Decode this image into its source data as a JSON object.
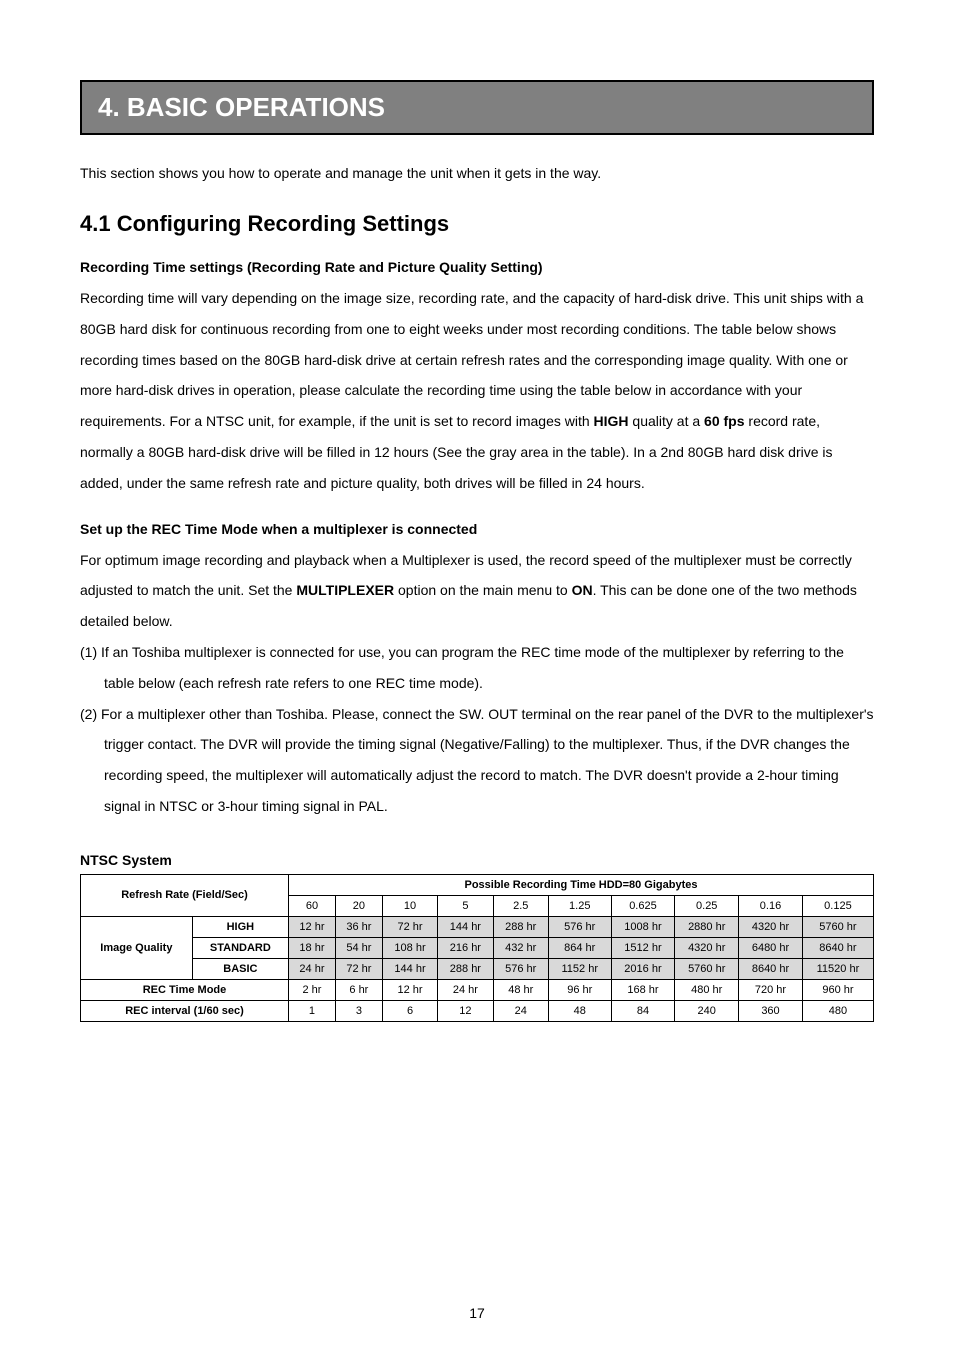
{
  "banner": {
    "title": "4. BASIC OPERATIONS"
  },
  "intro": "This section shows you how to operate and manage the unit when it gets in the way.",
  "h2": "4.1 Configuring Recording Settings",
  "section1": {
    "heading": "Recording Time settings (Recording Rate and Picture Quality Setting)",
    "text_a": "Recording time will vary depending on the image size, recording rate, and the capacity of hard-disk drive. This unit ships with a 80GB hard disk for continuous recording from one to eight weeks under most recording conditions. The table below shows recording times based on the 80GB hard-disk drive at certain refresh rates and the corresponding image quality. With one or more hard-disk drives in operation, please calculate the recording time using the table below in accordance with your requirements. For a NTSC unit, for example, if the unit is set to record images with ",
    "bold1": "HIGH",
    "text_b": " quality at a ",
    "bold2": "60 fps",
    "text_c": " record rate, normally a 80GB hard-disk drive will be filled in 12 hours (See the gray area in the table). In a 2nd 80GB hard disk drive is added, under the same refresh rate and picture quality, both drives will be filled in 24 hours."
  },
  "section2": {
    "heading": "Set up the REC Time Mode when a multiplexer is connected",
    "text_a": "For optimum image recording and playback when a Multiplexer is used, the record speed of the multiplexer must be correctly adjusted to match the unit. Set the ",
    "bold1": "MULTIPLEXER",
    "text_b": " option on the main menu to ",
    "bold2": "ON",
    "text_c": ". This can be done one of the two methods detailed below.",
    "item1": "(1) If an Toshiba multiplexer is connected for use, you can program the REC time mode of the multiplexer by referring to the table below (each refresh rate refers to one REC time mode).",
    "item2": "(2) For a multiplexer other than Toshiba. Please, connect the SW. OUT terminal on the rear panel of the DVR to the multiplexer's trigger contact. The DVR will provide the timing signal (Negative/Falling) to the multiplexer. Thus, if the DVR changes the recording speed, the multiplexer will automatically adjust the record to match. The DVR doesn't provide a 2-hour timing signal in NTSC or 3-hour timing signal in PAL."
  },
  "table": {
    "title": "NTSC System",
    "header_span": "Possible Recording Time HDD=80 Gigabytes",
    "refresh_label": "Refresh Rate (Field/Sec)",
    "refresh_values": [
      "60",
      "20",
      "10",
      "5",
      "2.5",
      "1.25",
      "0.625",
      "0.25",
      "0.16",
      "0.125"
    ],
    "image_quality_label": "Image Quality",
    "rows": [
      {
        "label": "HIGH",
        "cells": [
          "12 hr",
          "36 hr",
          "72 hr",
          "144 hr",
          "288 hr",
          "576 hr",
          "1008 hr",
          "2880 hr",
          "4320 hr",
          "5760 hr"
        ],
        "shaded": true
      },
      {
        "label": "STANDARD",
        "cells": [
          "18 hr",
          "54 hr",
          "108 hr",
          "216 hr",
          "432 hr",
          "864 hr",
          "1512 hr",
          "4320 hr",
          "6480 hr",
          "8640 hr"
        ],
        "shaded": true
      },
      {
        "label": "BASIC",
        "cells": [
          "24 hr",
          "72 hr",
          "144 hr",
          "288 hr",
          "576 hr",
          "1152 hr",
          "2016 hr",
          "5760 hr",
          "8640 hr",
          "11520 hr"
        ],
        "shaded": true
      }
    ],
    "rec_time_mode": {
      "label": "REC Time Mode",
      "cells": [
        "2 hr",
        "6 hr",
        "12 hr",
        "24 hr",
        "48 hr",
        "96 hr",
        "168 hr",
        "480 hr",
        "720 hr",
        "960 hr"
      ]
    },
    "rec_interval": {
      "label": "REC interval (1/60 sec)",
      "cells": [
        "1",
        "3",
        "6",
        "12",
        "24",
        "48",
        "84",
        "240",
        "360",
        "480"
      ]
    }
  },
  "page_number": "17",
  "colors": {
    "banner_bg": "#808080",
    "banner_border": "#000000",
    "banner_text": "#ffffff",
    "body_text": "#000000",
    "table_border": "#000000",
    "shade": "#d9d9d9",
    "background": "#ffffff"
  },
  "fonts": {
    "banner_size_pt": 20,
    "h2_size_pt": 16,
    "body_size_pt": 10,
    "table_size_pt": 8
  }
}
